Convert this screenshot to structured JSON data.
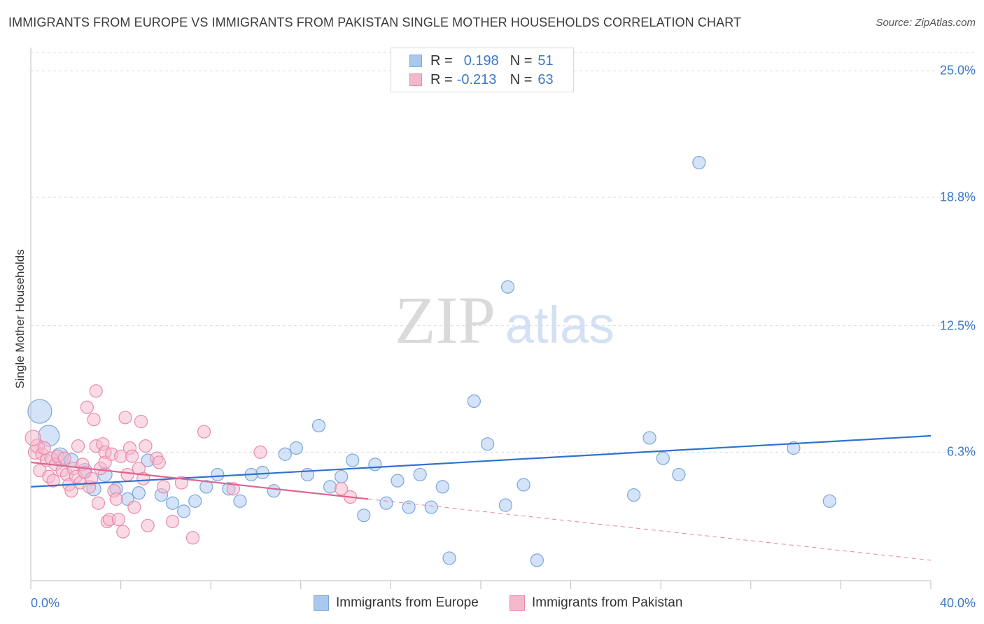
{
  "header": {
    "title": "IMMIGRANTS FROM EUROPE VS IMMIGRANTS FROM PAKISTAN SINGLE MOTHER HOUSEHOLDS CORRELATION CHART",
    "source": "Source: ZipAtlas.com"
  },
  "watermark": {
    "zip": "ZIP",
    "atlas": "atlas"
  },
  "legend": {
    "europe": {
      "r_label": "R =",
      "r_value": "0.198",
      "n_label": "N =",
      "n_value": "51"
    },
    "pakistan": {
      "r_label": "R =",
      "r_value": "-0.213",
      "n_label": "N =",
      "n_value": "63"
    }
  },
  "colors": {
    "europe_fill": "#a9c8ef",
    "europe_stroke": "#7aa6dc",
    "europe_line": "#2f73cc",
    "pakistan_fill": "#f5b8cb",
    "pakistan_stroke": "#e98aab",
    "pakistan_line": "#e0638f",
    "tick_text": "#3b78c8",
    "grid": "#d9d9d9"
  },
  "chart_data": {
    "type": "scatter",
    "title": "IMMIGRANTS FROM EUROPE VS IMMIGRANTS FROM PAKISTAN SINGLE MOTHER HOUSEHOLDS CORRELATION CHART",
    "xlabel": "",
    "ylabel": "Single Mother Households",
    "xlim": [
      0,
      40
    ],
    "ylim": [
      0,
      25.9
    ],
    "x_tick_labels": [
      "0.0%",
      "40.0%"
    ],
    "y_ticks": [
      6.3,
      12.5,
      18.8,
      25.0
    ],
    "y_tick_labels": [
      "6.3%",
      "12.5%",
      "18.8%",
      "25.0%"
    ],
    "grid": true,
    "series": [
      {
        "name": "Immigrants from Europe",
        "key": "europe",
        "R": 0.198,
        "N": 51,
        "trend": {
          "x": [
            0,
            40
          ],
          "y": [
            4.6,
            7.1
          ],
          "dashed_ext_to": null
        },
        "points": [
          {
            "x": 0.4,
            "y": 8.3,
            "s": 17
          },
          {
            "x": 0.8,
            "y": 7.1,
            "s": 15
          },
          {
            "x": 1.3,
            "y": 6.1,
            "s": 12
          },
          {
            "x": 1.8,
            "y": 5.9,
            "s": 10
          },
          {
            "x": 2.4,
            "y": 5.4,
            "s": 10
          },
          {
            "x": 2.8,
            "y": 4.5,
            "s": 10
          },
          {
            "x": 3.3,
            "y": 5.2,
            "s": 10
          },
          {
            "x": 3.8,
            "y": 4.5,
            "s": 9
          },
          {
            "x": 4.3,
            "y": 4.0,
            "s": 9
          },
          {
            "x": 4.8,
            "y": 4.3,
            "s": 9
          },
          {
            "x": 5.2,
            "y": 5.9,
            "s": 9
          },
          {
            "x": 5.8,
            "y": 4.2,
            "s": 9
          },
          {
            "x": 6.3,
            "y": 3.8,
            "s": 9
          },
          {
            "x": 6.8,
            "y": 3.4,
            "s": 9
          },
          {
            "x": 7.3,
            "y": 3.9,
            "s": 9
          },
          {
            "x": 7.8,
            "y": 4.6,
            "s": 9
          },
          {
            "x": 8.3,
            "y": 5.2,
            "s": 9
          },
          {
            "x": 8.8,
            "y": 4.5,
            "s": 9
          },
          {
            "x": 9.3,
            "y": 3.9,
            "s": 9
          },
          {
            "x": 9.8,
            "y": 5.2,
            "s": 9
          },
          {
            "x": 10.3,
            "y": 5.3,
            "s": 9
          },
          {
            "x": 10.8,
            "y": 4.4,
            "s": 9
          },
          {
            "x": 11.3,
            "y": 6.2,
            "s": 9
          },
          {
            "x": 11.8,
            "y": 6.5,
            "s": 9
          },
          {
            "x": 12.3,
            "y": 5.2,
            "s": 9
          },
          {
            "x": 12.8,
            "y": 7.6,
            "s": 9
          },
          {
            "x": 13.3,
            "y": 4.6,
            "s": 9
          },
          {
            "x": 13.8,
            "y": 5.1,
            "s": 9
          },
          {
            "x": 14.3,
            "y": 5.9,
            "s": 9
          },
          {
            "x": 14.8,
            "y": 3.2,
            "s": 9
          },
          {
            "x": 15.3,
            "y": 5.7,
            "s": 9
          },
          {
            "x": 15.8,
            "y": 3.8,
            "s": 9
          },
          {
            "x": 16.3,
            "y": 4.9,
            "s": 9
          },
          {
            "x": 16.8,
            "y": 3.6,
            "s": 9
          },
          {
            "x": 17.3,
            "y": 5.2,
            "s": 9
          },
          {
            "x": 17.8,
            "y": 3.6,
            "s": 9
          },
          {
            "x": 18.3,
            "y": 4.6,
            "s": 9
          },
          {
            "x": 18.6,
            "y": 1.1,
            "s": 9
          },
          {
            "x": 19.7,
            "y": 8.8,
            "s": 9
          },
          {
            "x": 20.3,
            "y": 6.7,
            "s": 9
          },
          {
            "x": 21.2,
            "y": 14.4,
            "s": 9
          },
          {
            "x": 21.1,
            "y": 3.7,
            "s": 9
          },
          {
            "x": 21.9,
            "y": 4.7,
            "s": 9
          },
          {
            "x": 22.5,
            "y": 1.0,
            "s": 9
          },
          {
            "x": 26.8,
            "y": 4.2,
            "s": 9
          },
          {
            "x": 27.5,
            "y": 7.0,
            "s": 9
          },
          {
            "x": 28.1,
            "y": 6.0,
            "s": 9
          },
          {
            "x": 28.8,
            "y": 5.2,
            "s": 9
          },
          {
            "x": 29.7,
            "y": 20.5,
            "s": 9
          },
          {
            "x": 33.9,
            "y": 6.5,
            "s": 9
          },
          {
            "x": 35.5,
            "y": 3.9,
            "s": 9
          }
        ]
      },
      {
        "name": "Immigrants from Pakistan",
        "key": "pakistan",
        "R": -0.213,
        "N": 63,
        "trend": {
          "x": [
            0,
            15
          ],
          "y": [
            5.8,
            4.0
          ],
          "dashed_ext_to": [
            40,
            1.0
          ]
        },
        "points": [
          {
            "x": 0.2,
            "y": 6.3,
            "s": 10
          },
          {
            "x": 0.3,
            "y": 6.6,
            "s": 10
          },
          {
            "x": 0.4,
            "y": 5.4,
            "s": 9
          },
          {
            "x": 0.5,
            "y": 6.2,
            "s": 9
          },
          {
            "x": 0.6,
            "y": 6.5,
            "s": 9
          },
          {
            "x": 0.7,
            "y": 5.9,
            "s": 9
          },
          {
            "x": 0.8,
            "y": 5.1,
            "s": 9
          },
          {
            "x": 0.9,
            "y": 6.0,
            "s": 9
          },
          {
            "x": 1.0,
            "y": 4.9,
            "s": 9
          },
          {
            "x": 1.1,
            "y": 5.7,
            "s": 9
          },
          {
            "x": 1.2,
            "y": 6.1,
            "s": 9
          },
          {
            "x": 1.4,
            "y": 5.4,
            "s": 9
          },
          {
            "x": 1.5,
            "y": 6.0,
            "s": 9
          },
          {
            "x": 1.6,
            "y": 5.2,
            "s": 9
          },
          {
            "x": 1.7,
            "y": 4.7,
            "s": 9
          },
          {
            "x": 1.8,
            "y": 4.4,
            "s": 9
          },
          {
            "x": 1.9,
            "y": 5.5,
            "s": 9
          },
          {
            "x": 2.0,
            "y": 5.1,
            "s": 9
          },
          {
            "x": 2.1,
            "y": 6.6,
            "s": 9
          },
          {
            "x": 2.2,
            "y": 4.8,
            "s": 9
          },
          {
            "x": 2.3,
            "y": 5.7,
            "s": 9
          },
          {
            "x": 2.4,
            "y": 5.3,
            "s": 9
          },
          {
            "x": 2.5,
            "y": 8.5,
            "s": 9
          },
          {
            "x": 2.6,
            "y": 4.6,
            "s": 9
          },
          {
            "x": 2.7,
            "y": 5.0,
            "s": 9
          },
          {
            "x": 2.8,
            "y": 7.9,
            "s": 9
          },
          {
            "x": 2.9,
            "y": 9.3,
            "s": 9
          },
          {
            "x": 2.9,
            "y": 6.6,
            "s": 9
          },
          {
            "x": 3.0,
            "y": 3.8,
            "s": 9
          },
          {
            "x": 3.1,
            "y": 5.5,
            "s": 9
          },
          {
            "x": 3.2,
            "y": 6.7,
            "s": 9
          },
          {
            "x": 3.3,
            "y": 6.3,
            "s": 9
          },
          {
            "x": 3.3,
            "y": 5.8,
            "s": 9
          },
          {
            "x": 3.4,
            "y": 2.9,
            "s": 9
          },
          {
            "x": 3.5,
            "y": 3.0,
            "s": 9
          },
          {
            "x": 3.6,
            "y": 6.2,
            "s": 9
          },
          {
            "x": 3.7,
            "y": 4.4,
            "s": 9
          },
          {
            "x": 3.8,
            "y": 4.0,
            "s": 9
          },
          {
            "x": 3.9,
            "y": 3.0,
            "s": 9
          },
          {
            "x": 4.0,
            "y": 6.1,
            "s": 9
          },
          {
            "x": 4.1,
            "y": 2.4,
            "s": 9
          },
          {
            "x": 4.2,
            "y": 8.0,
            "s": 9
          },
          {
            "x": 4.3,
            "y": 5.2,
            "s": 9
          },
          {
            "x": 4.4,
            "y": 6.5,
            "s": 9
          },
          {
            "x": 4.5,
            "y": 6.1,
            "s": 9
          },
          {
            "x": 4.6,
            "y": 3.6,
            "s": 9
          },
          {
            "x": 4.8,
            "y": 5.5,
            "s": 9
          },
          {
            "x": 4.9,
            "y": 7.8,
            "s": 9
          },
          {
            "x": 5.0,
            "y": 5.0,
            "s": 9
          },
          {
            "x": 5.1,
            "y": 6.6,
            "s": 9
          },
          {
            "x": 5.2,
            "y": 2.7,
            "s": 9
          },
          {
            "x": 5.6,
            "y": 6.0,
            "s": 9
          },
          {
            "x": 5.7,
            "y": 5.8,
            "s": 9
          },
          {
            "x": 5.9,
            "y": 4.6,
            "s": 9
          },
          {
            "x": 6.3,
            "y": 2.9,
            "s": 9
          },
          {
            "x": 6.7,
            "y": 4.8,
            "s": 9
          },
          {
            "x": 7.2,
            "y": 2.1,
            "s": 9
          },
          {
            "x": 7.7,
            "y": 7.3,
            "s": 9
          },
          {
            "x": 9.0,
            "y": 4.5,
            "s": 9
          },
          {
            "x": 10.2,
            "y": 6.3,
            "s": 9
          },
          {
            "x": 13.8,
            "y": 4.5,
            "s": 9
          },
          {
            "x": 14.2,
            "y": 4.1,
            "s": 9
          },
          {
            "x": 0.1,
            "y": 7.0,
            "s": 11
          }
        ]
      }
    ]
  }
}
